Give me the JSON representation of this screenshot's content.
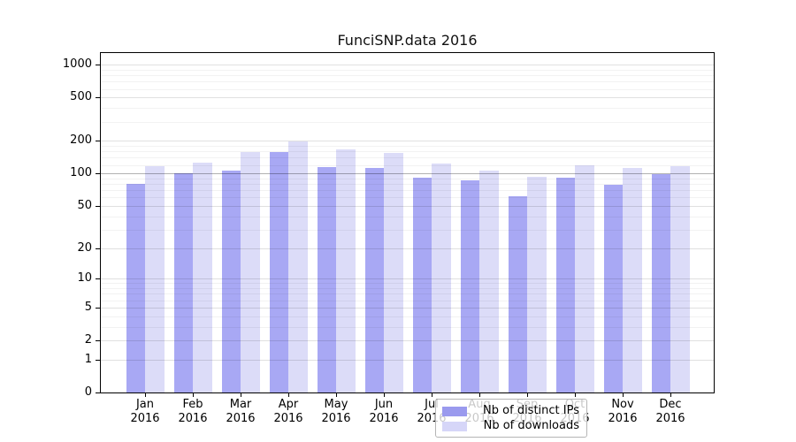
{
  "chart_data": {
    "type": "bar",
    "title": "FunciSNP.data 2016",
    "categories": [
      "Jan",
      "Feb",
      "Mar",
      "Apr",
      "May",
      "Jun",
      "Jul",
      "Aug",
      "Sep",
      "Oct",
      "Nov",
      "Dec"
    ],
    "category_year": "2016",
    "series": [
      {
        "name": "Nb of distinct IPs",
        "color": "#a8a8f4",
        "legend_color": "#9a9aee",
        "values": [
          80,
          101,
          107,
          157,
          115,
          112,
          91,
          87,
          62,
          91,
          79,
          98
        ]
      },
      {
        "name": "Nb of downloads",
        "color": "#dcdcf8",
        "legend_color": "#d6d6f8",
        "values": [
          116,
          127,
          157,
          198,
          166,
          156,
          123,
          106,
          94,
          120,
          112,
          117
        ]
      }
    ],
    "y_scale": "log1p",
    "ylim": [
      0,
      1280
    ],
    "y_ticks": [
      0,
      1,
      2,
      5,
      10,
      20,
      50,
      100,
      200,
      500,
      1000
    ],
    "y_minor_ticks": [
      3,
      4,
      6,
      7,
      8,
      9,
      30,
      40,
      60,
      70,
      80,
      90,
      120,
      140,
      160,
      180,
      300,
      400,
      600,
      700,
      800,
      900
    ],
    "emphasis_gridline": 100,
    "grid": true,
    "legend_position": "lower center",
    "axis_color": "#000000",
    "background_color": "#ffffff"
  }
}
